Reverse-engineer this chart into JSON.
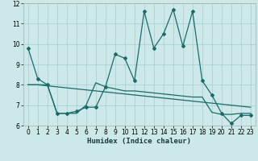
{
  "xlabel": "Humidex (Indice chaleur)",
  "bg_color": "#cce8e8",
  "line_color": "#1a6b6b",
  "grid_color": "#aad4d4",
  "xlim": [
    -0.5,
    23.5
  ],
  "ylim": [
    6,
    12
  ],
  "yticks": [
    6,
    7,
    8,
    9,
    10,
    11,
    12
  ],
  "xticks": [
    0,
    1,
    2,
    3,
    4,
    5,
    6,
    7,
    8,
    9,
    10,
    11,
    12,
    13,
    14,
    15,
    16,
    17,
    18,
    19,
    20,
    21,
    22,
    23
  ],
  "line1_x": [
    0,
    1,
    2,
    3,
    4,
    5,
    6,
    7,
    8,
    9,
    10,
    11,
    12,
    13,
    14,
    15,
    16,
    17,
    18,
    19,
    20,
    21,
    22,
    23
  ],
  "line1_y": [
    9.8,
    8.3,
    8.0,
    6.6,
    6.6,
    6.7,
    6.9,
    6.9,
    7.9,
    9.5,
    9.3,
    8.2,
    11.6,
    9.8,
    10.5,
    11.7,
    9.9,
    11.6,
    8.2,
    7.5,
    6.6,
    6.1,
    6.5,
    6.5
  ],
  "line2_x": [
    0,
    1,
    2,
    3,
    4,
    5,
    6,
    7,
    8,
    9,
    10,
    11,
    12,
    13,
    14,
    15,
    16,
    17,
    18,
    19,
    20,
    21,
    22,
    23
  ],
  "line2_y": [
    8.0,
    8.0,
    7.95,
    7.9,
    7.85,
    7.8,
    7.75,
    7.7,
    7.65,
    7.6,
    7.55,
    7.5,
    7.45,
    7.4,
    7.35,
    7.3,
    7.25,
    7.2,
    7.15,
    7.1,
    7.05,
    7.0,
    6.95,
    6.9
  ],
  "line3_x": [
    0,
    1,
    2,
    3,
    4,
    5,
    6,
    7,
    8,
    9,
    10,
    11,
    12,
    13,
    14,
    15,
    16,
    17,
    18,
    19,
    20,
    21,
    22,
    23
  ],
  "line3_y": [
    8.0,
    8.0,
    8.0,
    6.6,
    6.6,
    6.6,
    7.0,
    8.1,
    7.9,
    7.8,
    7.7,
    7.7,
    7.65,
    7.6,
    7.55,
    7.5,
    7.45,
    7.4,
    7.4,
    6.65,
    6.55,
    6.55,
    6.6,
    6.6
  ]
}
